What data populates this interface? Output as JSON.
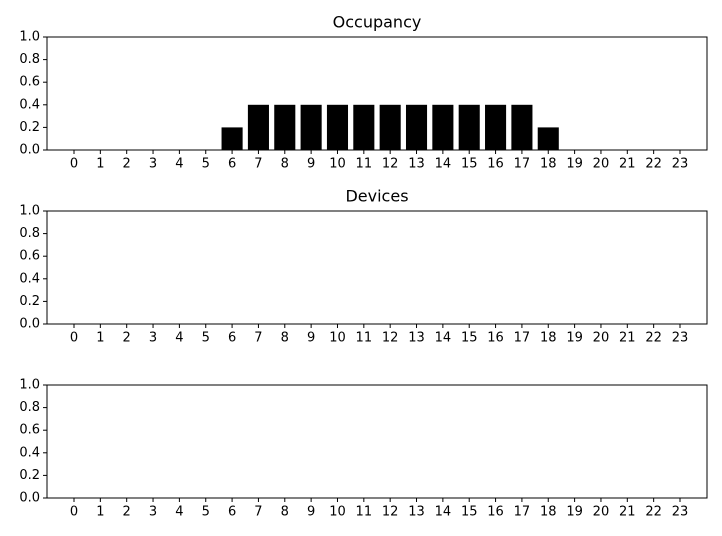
{
  "chart_data": [
    {
      "type": "bar",
      "title": "Occupancy",
      "categories": [
        "0",
        "1",
        "2",
        "3",
        "4",
        "5",
        "6",
        "7",
        "8",
        "9",
        "10",
        "11",
        "12",
        "13",
        "14",
        "15",
        "16",
        "17",
        "18",
        "19",
        "20",
        "21",
        "22",
        "23"
      ],
      "values": [
        0,
        0,
        0,
        0,
        0,
        0,
        0.2,
        0.4,
        0.4,
        0.4,
        0.4,
        0.4,
        0.4,
        0.4,
        0.4,
        0.4,
        0.4,
        0.4,
        0.2,
        0,
        0,
        0,
        0,
        0
      ],
      "color": "#000000",
      "ylim": [
        0,
        1
      ],
      "yticks": [
        {
          "value": 0,
          "label": "0.0"
        },
        {
          "value": 0.2,
          "label": "0.2"
        },
        {
          "value": 0.4,
          "label": "0.4"
        },
        {
          "value": 0.6,
          "label": "0.6"
        },
        {
          "value": 0.8,
          "label": "0.8"
        },
        {
          "value": 1,
          "label": "1.0"
        }
      ]
    },
    {
      "type": "bar",
      "title": "Devices",
      "categories": [
        "0",
        "1",
        "2",
        "3",
        "4",
        "5",
        "6",
        "7",
        "8",
        "9",
        "10",
        "11",
        "12",
        "13",
        "14",
        "15",
        "16",
        "17",
        "18",
        "19",
        "20",
        "21",
        "22",
        "23"
      ],
      "values": [
        0,
        0,
        0,
        0,
        0,
        0,
        0,
        0,
        0,
        0,
        0,
        0,
        0,
        0,
        0,
        0,
        0,
        0,
        0,
        0,
        0,
        0,
        0,
        0
      ],
      "color": "#000000",
      "ylim": [
        0,
        1
      ],
      "yticks": [
        {
          "value": 0,
          "label": "0.0"
        },
        {
          "value": 0.2,
          "label": "0.2"
        },
        {
          "value": 0.4,
          "label": "0.4"
        },
        {
          "value": 0.6,
          "label": "0.6"
        },
        {
          "value": 0.8,
          "label": "0.8"
        },
        {
          "value": 1,
          "label": "1.0"
        }
      ]
    },
    {
      "type": "bar",
      "categories": [
        "0",
        "1",
        "2",
        "3",
        "4",
        "5",
        "6",
        "7",
        "8",
        "9",
        "10",
        "11",
        "12",
        "13",
        "14",
        "15",
        "16",
        "17",
        "18",
        "19",
        "20",
        "21",
        "22",
        "23"
      ],
      "values": [
        0,
        0,
        0,
        0,
        0,
        0,
        0,
        0,
        0,
        0,
        0,
        0,
        0,
        0,
        0,
        0,
        0,
        0,
        0,
        0,
        0,
        0,
        0,
        0
      ],
      "color": "#000000",
      "ylim": [
        0,
        1
      ],
      "yticks": [
        {
          "value": 0,
          "label": "0.0"
        },
        {
          "value": 0.2,
          "label": "0.2"
        },
        {
          "value": 0.4,
          "label": "0.4"
        },
        {
          "value": 0.6,
          "label": "0.6"
        },
        {
          "value": 0.8,
          "label": "0.8"
        },
        {
          "value": 1,
          "label": "1.0"
        }
      ]
    }
  ]
}
